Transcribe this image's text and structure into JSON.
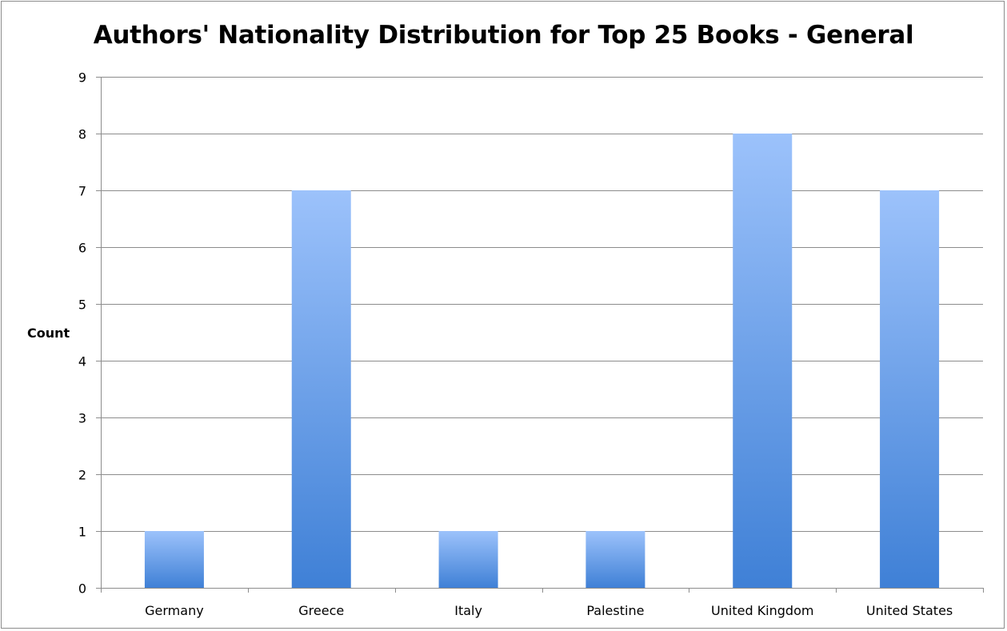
{
  "chart_data": {
    "type": "bar",
    "title": "Authors' Nationality Distribution for Top 25 Books - General",
    "xlabel": "",
    "ylabel": "Count",
    "categories": [
      "Germany",
      "Greece",
      "Italy",
      "Palestine",
      "United Kingdom",
      "United States"
    ],
    "values": [
      1,
      7,
      1,
      1,
      8,
      7
    ],
    "ylim": [
      0,
      9
    ],
    "yticks": [
      "0",
      "1",
      "2",
      "3",
      "4",
      "5",
      "6",
      "7",
      "8",
      "9"
    ],
    "grid": true,
    "legend": "none",
    "colors": {
      "bar_top": "#9cc2fb",
      "bar_bottom": "#3f80d6",
      "gridline": "#8c8c8c",
      "axis": "#8c8c8c"
    }
  }
}
